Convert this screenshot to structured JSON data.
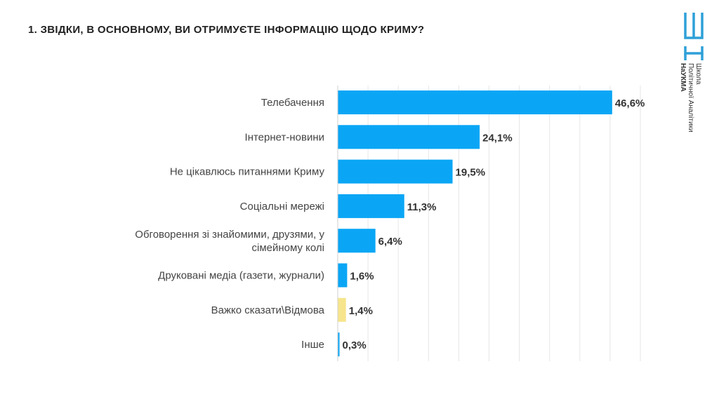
{
  "title": "1. ЗВІДКИ, В ОСНОВНОМУ, ВИ ОТРИМУЄТЕ ІНФОРМАЦІЮ ЩОДО КРИМУ?",
  "logo": {
    "lines": [
      "Школа",
      "Політичної Аналітики",
      "НаУКМА"
    ]
  },
  "colors": {
    "primary_bar": "#0aa6f5",
    "highlight_bar": "#f7e58c",
    "grid": "#e6e6e6",
    "text": "#444444",
    "logo": "#2ea0d8"
  },
  "chart_data": {
    "type": "bar",
    "orientation": "horizontal",
    "categories": [
      "Телебачення",
      "Інтернет-новини",
      "Не цікавлюсь питаннями Криму",
      "Соціальні мережі",
      "Обговорення зі знайомими, друзями, у сімейному колі",
      "Друковані медіа (газети, журнали)",
      "Важко сказати\\Відмова",
      "Інше"
    ],
    "values": [
      46.6,
      24.1,
      19.5,
      11.3,
      6.4,
      1.6,
      1.4,
      0.3
    ],
    "value_labels": [
      "46,6%",
      "24,1%",
      "19,5%",
      "11,3%",
      "6,4%",
      "1,6%",
      "1,4%",
      "0,3%"
    ],
    "bar_colors": [
      "primary",
      "primary",
      "primary",
      "primary",
      "primary",
      "primary",
      "highlight",
      "primary"
    ],
    "xlim": [
      0,
      50
    ],
    "grid": true
  }
}
